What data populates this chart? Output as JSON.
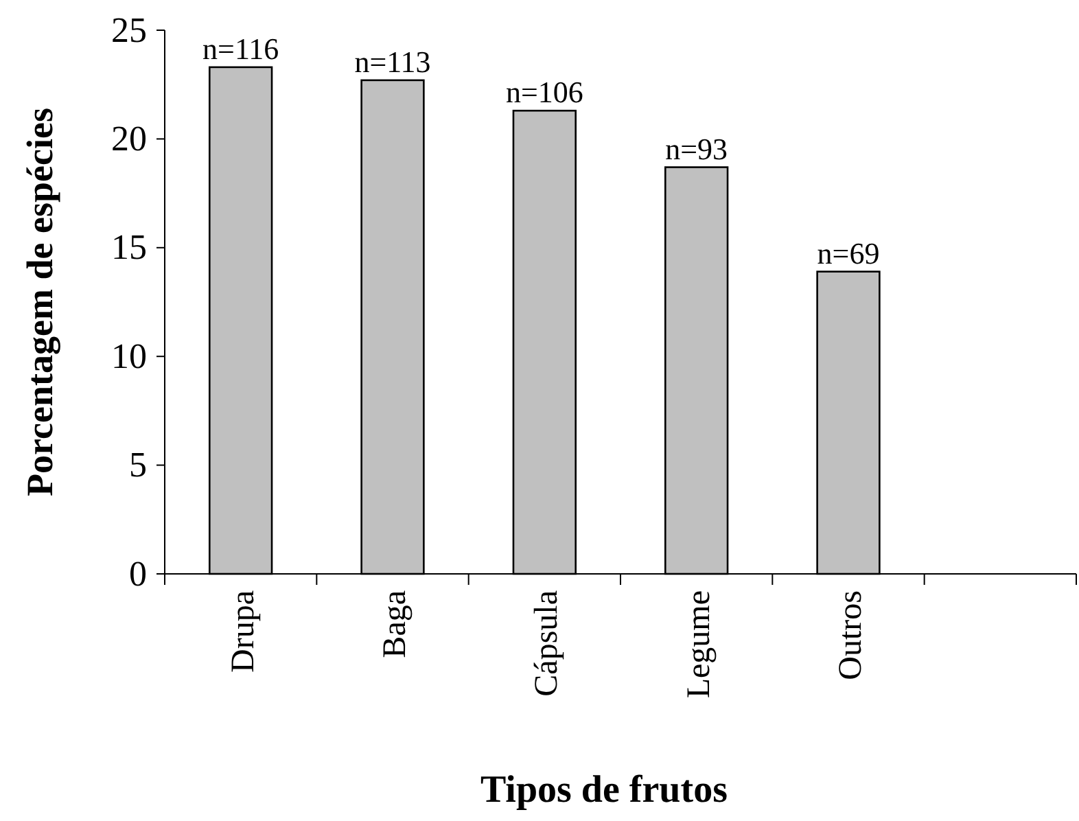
{
  "chart_data": {
    "type": "bar",
    "xlabel": "Tipos de frutos",
    "ylabel": "Porcentagem de espécies",
    "categories": [
      "Drupa",
      "Baga",
      "Cápsula",
      "Legume",
      "Outros",
      null
    ],
    "values": [
      23.3,
      22.7,
      21.3,
      18.7,
      13.9,
      null
    ],
    "annotations": [
      {
        "text": "n=116",
        "x": "Drupa",
        "y": 23.3
      },
      {
        "text": "n=113",
        "x": "Baga",
        "y": 22.7
      },
      {
        "text": "n=106",
        "x": "Cápsula",
        "y": 21.3
      },
      {
        "text": "n=93",
        "x": "Legume",
        "y": 18.7
      },
      {
        "text": "n=69",
        "x": "Outros",
        "y": 13.9
      }
    ],
    "color": "#c0c0c0",
    "ylim": [
      0,
      25
    ],
    "yticks": [
      0,
      5,
      10,
      15,
      20,
      25
    ],
    "grid": false
  }
}
